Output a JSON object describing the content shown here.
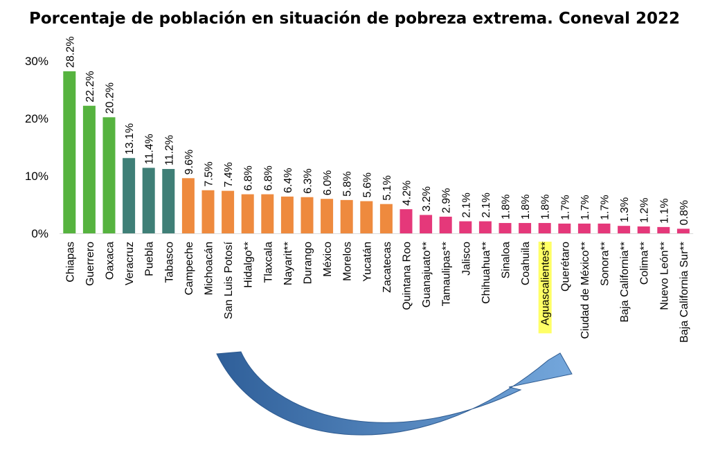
{
  "colors": {
    "green": "#56b33f",
    "teal": "#3f7f77",
    "orange": "#ee8a3e",
    "pink": "#e5387a",
    "highlight": "#ffff66",
    "arrow_dark": "#2f5f99",
    "arrow_light": "#74a7dc"
  },
  "chart_data": {
    "type": "bar",
    "title": "Porcentaje de población en situación de pobreza extrema. Coneval 2022",
    "xlabel": "",
    "ylabel": "",
    "ylim": [
      0,
      30
    ],
    "y_ticks": [
      "0%",
      "10%",
      "20%",
      "30%"
    ],
    "y_tick_values": [
      0,
      10,
      20,
      30
    ],
    "grid": false,
    "highlighted_category": "Aguascalientes**",
    "categories": [
      "Chiapas",
      "Guerrero",
      "Oaxaca",
      "Veracruz",
      "Puebla",
      "Tabasco",
      "Campeche",
      "Michoacán",
      "San Luis Potosí",
      "Hidalgo**",
      "Tlaxcala",
      "Nayarit**",
      "Durango",
      "México",
      "Morelos",
      "Yucatán",
      "Zacatecas",
      "Quintana Roo",
      "Guanajuato**",
      "Tamaulipas**",
      "Jalisco",
      "Chihuahua**",
      "Sinaloa",
      "Coahuila",
      "Aguascalientes**",
      "Querétaro",
      "Ciudad de México**",
      "Sonora**",
      "Baja California**",
      "Colima**",
      "Nuevo León**",
      "Baja California Sur**"
    ],
    "values": [
      28.2,
      22.2,
      20.2,
      13.1,
      11.4,
      11.2,
      9.6,
      7.5,
      7.4,
      6.8,
      6.8,
      6.4,
      6.3,
      6.0,
      5.8,
      5.6,
      5.1,
      4.2,
      3.2,
      2.9,
      2.1,
      2.1,
      1.8,
      1.8,
      1.8,
      1.7,
      1.7,
      1.7,
      1.3,
      1.2,
      1.1,
      0.8
    ],
    "value_labels": [
      "28.2%",
      "22.2%",
      "20.2%",
      "13.1%",
      "11.4%",
      "11.2%",
      "9.6%",
      "7.5%",
      "7.4%",
      "6.8%",
      "6.8%",
      "6.4%",
      "6.3%",
      "6.0%",
      "5.8%",
      "5.6%",
      "5.1%",
      "4.2%",
      "3.2%",
      "2.9%",
      "2.1%",
      "2.1%",
      "1.8%",
      "1.8%",
      "1.8%",
      "1.7%",
      "1.7%",
      "1.7%",
      "1.3%",
      "1.2%",
      "1.1%",
      "0.8%"
    ],
    "groups": [
      "green",
      "green",
      "green",
      "teal",
      "teal",
      "teal",
      "orange",
      "orange",
      "orange",
      "orange",
      "orange",
      "orange",
      "orange",
      "orange",
      "orange",
      "orange",
      "orange",
      "pink",
      "pink",
      "pink",
      "pink",
      "pink",
      "pink",
      "pink",
      "pink",
      "pink",
      "pink",
      "pink",
      "pink",
      "pink",
      "pink",
      "pink"
    ],
    "annotation": "curved arrow from San Luis Potosí to Aguascalientes"
  }
}
